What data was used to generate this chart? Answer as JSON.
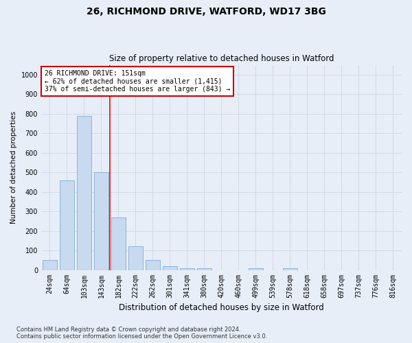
{
  "title1": "26, RICHMOND DRIVE, WATFORD, WD17 3BG",
  "title2": "Size of property relative to detached houses in Watford",
  "xlabel": "Distribution of detached houses by size in Watford",
  "ylabel": "Number of detached properties",
  "categories": [
    "24sqm",
    "64sqm",
    "103sqm",
    "143sqm",
    "182sqm",
    "222sqm",
    "262sqm",
    "301sqm",
    "341sqm",
    "380sqm",
    "420sqm",
    "460sqm",
    "499sqm",
    "539sqm",
    "578sqm",
    "618sqm",
    "658sqm",
    "697sqm",
    "737sqm",
    "776sqm",
    "816sqm"
  ],
  "values": [
    50,
    460,
    790,
    500,
    270,
    120,
    50,
    20,
    10,
    10,
    0,
    0,
    10,
    0,
    10,
    0,
    0,
    0,
    0,
    0,
    0
  ],
  "bar_color": "#c8daf0",
  "bar_edge_color": "#8ab4d8",
  "grid_color": "#d0d8e8",
  "background_color": "#e8eef8",
  "vline_x": 3.5,
  "annotation_text": "26 RICHMOND DRIVE: 151sqm\n← 62% of detached houses are smaller (1,415)\n37% of semi-detached houses are larger (843) →",
  "annotation_box_color": "#ffffff",
  "annotation_box_edge_color": "#cc0000",
  "ylim": [
    0,
    1050
  ],
  "footnote": "Contains HM Land Registry data © Crown copyright and database right 2024.\nContains public sector information licensed under the Open Government Licence v3.0."
}
